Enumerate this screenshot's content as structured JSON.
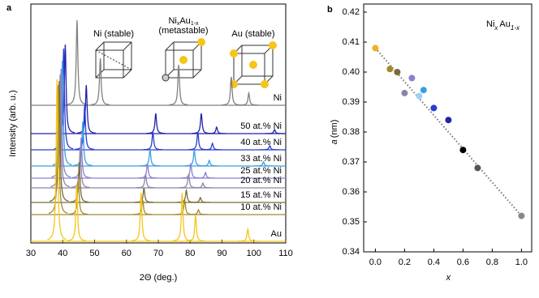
{
  "chart_data": [
    {
      "type": "spectra",
      "panel_label": "a",
      "xlabel": "2Θ (deg.)",
      "ylabel": "Intensity (arb. u.)",
      "xlim": [
        30,
        110
      ],
      "xticks": [
        30,
        40,
        50,
        60,
        70,
        80,
        90,
        100,
        110
      ],
      "insets": [
        {
          "parts": [
            "Ni (stable)"
          ]
        },
        {
          "parts": [
            "Ni",
            "x",
            "Au",
            "1-x",
            "(metastable)"
          ]
        },
        {
          "parts": [
            "Au (stable)"
          ]
        }
      ],
      "series": [
        {
          "name": "Ni",
          "color": "#808080",
          "x": [
            44.5,
            51.8,
            76.4,
            92.9,
            98.4
          ],
          "values": [
            105,
            58,
            50,
            35,
            15
          ]
        },
        {
          "name": "50 at.% Ni",
          "color": "#2222aa",
          "x": [
            40.8,
            47.4,
            69.2,
            83.5,
            88.3,
            106.5
          ],
          "values": [
            110,
            60,
            25,
            25,
            8,
            5
          ]
        },
        {
          "name": "40 at.% Ni",
          "color": "#2a3bd0",
          "x": [
            40.3,
            46.9,
            68.3,
            82.4,
            87.0,
            105
          ],
          "values": [
            125,
            55,
            22,
            22,
            8,
            5
          ]
        },
        {
          "name": "33 at.% Ni",
          "color": "#3a9fe0",
          "x": [
            39.9,
            46.3,
            67.4,
            81.3,
            86.0,
            103
          ],
          "values": [
            130,
            55,
            20,
            20,
            7,
            5
          ]
        },
        {
          "name": "25 at.% Ni",
          "color": "#8a80d0",
          "x": [
            39.5,
            45.8,
            66.6,
            80.2,
            84.8
          ],
          "values": [
            135,
            50,
            18,
            18,
            7
          ]
        },
        {
          "name": "20 at.% Ni",
          "color": "#8e84a8",
          "x": [
            39.2,
            45.5,
            66.0,
            79.5,
            84.0
          ],
          "values": [
            140,
            50,
            17,
            17,
            6
          ]
        },
        {
          "name": "15 at.% Ni",
          "color": "#7a6a3a",
          "x": [
            38.9,
            45.2,
            65.5,
            78.8,
            83.2
          ],
          "values": [
            150,
            50,
            18,
            15,
            6
          ]
        },
        {
          "name": "10 at.% Ni",
          "color": "#a08a30",
          "x": [
            38.6,
            44.9,
            65.1,
            78.3,
            82.6
          ],
          "values": [
            160,
            45,
            18,
            18,
            6
          ]
        },
        {
          "name": "Au",
          "color": "#f5c518",
          "x": [
            38.2,
            44.4,
            64.6,
            77.5,
            81.7,
            98.1
          ],
          "values": [
            200,
            70,
            60,
            60,
            32,
            15
          ]
        }
      ]
    },
    {
      "type": "scatter",
      "panel_label": "b",
      "legend_parts": [
        "Ni",
        "x",
        "Au",
        "1-x"
      ],
      "xlabel": "x",
      "ylabel_parts": [
        "a",
        "(nm)"
      ],
      "xlim": [
        -0.08,
        1.07
      ],
      "ylim": [
        0.34,
        0.42
      ],
      "xticks": [
        {
          "value": 0,
          "label": "0.0"
        },
        0.2,
        0.4,
        0.6,
        0.8,
        {
          "value": 1,
          "label": "1.0"
        }
      ],
      "yticks": [
        0.34,
        0.35,
        0.36,
        0.37,
        0.38,
        0.39,
        {
          "value": 0.4,
          "label": "0.40"
        },
        0.41,
        0.42
      ],
      "x": [
        0,
        0.1,
        0.15,
        0.2,
        0.25,
        0.3,
        0.33,
        0.4,
        0.5,
        0.6,
        0.7,
        1.0
      ],
      "values": [
        0.408,
        0.401,
        0.4,
        0.393,
        0.398,
        0.392,
        0.394,
        0.388,
        0.384,
        0.374,
        0.368,
        0.352
      ],
      "colors": [
        "#f0b020",
        "#a08a30",
        "#7a6a3a",
        "#8e84a8",
        "#8a80d0",
        "#9fd0f5",
        "#3a9fe0",
        "#2a3bd0",
        "#2222aa",
        "#000000",
        "#555555",
        "#888888"
      ],
      "trend": {
        "x": [
          0,
          1
        ],
        "values": [
          0.408,
          0.352
        ]
      }
    }
  ]
}
